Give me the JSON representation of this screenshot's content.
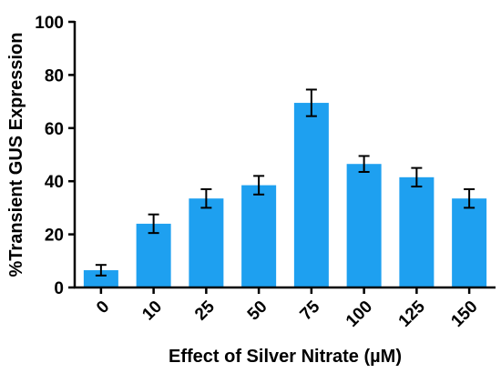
{
  "chart_data": {
    "type": "bar",
    "title": "",
    "xlabel": "Effect of Silver Nitrate (µM)",
    "ylabel": "%Transient GUS Expression",
    "categories": [
      "0",
      "10",
      "25",
      "50",
      "75",
      "100",
      "125",
      "150"
    ],
    "values": [
      6.5,
      24,
      33.5,
      38.5,
      69.5,
      46.5,
      41.5,
      33.5
    ],
    "errors": [
      2,
      3.5,
      3.5,
      3.5,
      5,
      3,
      3.5,
      3.5
    ],
    "yticks": [
      0,
      20,
      40,
      60,
      80,
      100
    ],
    "ylim": [
      0,
      100
    ],
    "grid": false,
    "colors": {
      "bar": "#1EA0F0",
      "axis": "#000000",
      "error_bar": "#000000"
    }
  }
}
